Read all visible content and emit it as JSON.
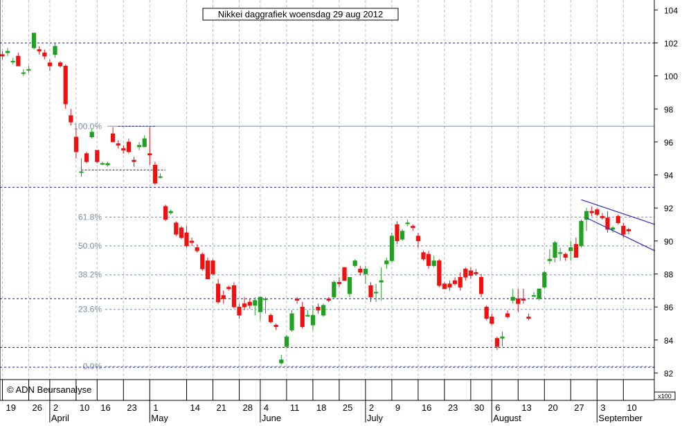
{
  "chart_data": {
    "type": "candlestick",
    "title": "Nikkei daggrafiek woensdag 29 aug 2012",
    "watermark": "© ADN Beursanalyse",
    "y_unit_label": "x100",
    "ylim": [
      81.6,
      104.6
    ],
    "y_ticks": [
      82,
      84,
      86,
      88,
      90,
      92,
      94,
      96,
      98,
      100,
      102,
      104
    ],
    "x_ticks": [
      {
        "label": "19",
        "i": 0
      },
      {
        "label": "26",
        "i": 5
      },
      {
        "label": "2",
        "i": 9
      },
      {
        "label": "10",
        "i": 14
      },
      {
        "label": "16",
        "i": 18
      },
      {
        "label": "23",
        "i": 23
      },
      {
        "label": "1",
        "i": 28
      },
      {
        "label": "14",
        "i": 35
      },
      {
        "label": "21",
        "i": 40
      },
      {
        "label": "28",
        "i": 45
      },
      {
        "label": "4",
        "i": 49
      },
      {
        "label": "11",
        "i": 54
      },
      {
        "label": "18",
        "i": 59
      },
      {
        "label": "25",
        "i": 64
      },
      {
        "label": "2",
        "i": 69
      },
      {
        "label": "9",
        "i": 74
      },
      {
        "label": "16",
        "i": 79
      },
      {
        "label": "23",
        "i": 84
      },
      {
        "label": "30",
        "i": 89
      },
      {
        "label": "6",
        "i": 93
      },
      {
        "label": "13",
        "i": 98
      },
      {
        "label": "20",
        "i": 103
      },
      {
        "label": "27",
        "i": 108
      },
      {
        "label": "3",
        "i": 113
      },
      {
        "label": "10",
        "i": 118
      }
    ],
    "months": [
      {
        "label": "April",
        "i": 9
      },
      {
        "label": "May",
        "i": 28
      },
      {
        "label": "June",
        "i": 49
      },
      {
        "label": "July",
        "i": 69
      },
      {
        "label": "August",
        "i": 93
      },
      {
        "label": "September",
        "i": 113
      }
    ],
    "candles": [
      [
        101.3,
        101.5,
        101.0,
        101.2
      ],
      [
        101.4,
        101.7,
        101.2,
        101.5
      ],
      [
        100.9,
        101.1,
        100.7,
        100.9
      ],
      [
        101.2,
        101.4,
        100.6,
        100.6
      ],
      [
        100.2,
        100.4,
        100.0,
        100.2
      ],
      [
        100.4,
        100.6,
        100.2,
        100.4
      ],
      [
        101.7,
        102.6,
        101.6,
        102.6
      ],
      [
        101.6,
        101.8,
        101.3,
        101.5
      ],
      [
        101.4,
        101.6,
        101.0,
        101.2
      ],
      [
        100.8,
        101.0,
        100.3,
        100.6
      ],
      [
        101.3,
        102.0,
        101.1,
        101.8
      ],
      [
        100.8,
        100.9,
        100.5,
        100.6
      ],
      [
        100.6,
        100.7,
        98.0,
        98.3
      ],
      [
        97.6,
        98.0,
        97.0,
        97.2
      ],
      [
        96.3,
        96.8,
        95.0,
        95.4
      ],
      [
        94.2,
        95.0,
        93.9,
        94.2
      ],
      [
        95.3,
        95.4,
        94.7,
        94.8
      ],
      [
        96.3,
        96.8,
        96.2,
        96.6
      ],
      [
        95.5,
        95.5,
        94.7,
        94.8
      ],
      [
        94.7,
        94.8,
        94.6,
        94.7
      ],
      [
        94.6,
        94.8,
        94.5,
        94.7
      ],
      [
        96.5,
        96.9,
        96.1,
        96.0
      ],
      [
        95.9,
        96.1,
        95.6,
        95.8
      ],
      [
        95.6,
        95.8,
        95.3,
        95.5
      ],
      [
        96.0,
        96.2,
        95.3,
        95.4
      ],
      [
        94.9,
        95.1,
        94.5,
        94.8
      ],
      [
        95.7,
        96.0,
        95.5,
        95.8
      ],
      [
        95.7,
        96.4,
        95.7,
        96.2
      ],
      [
        95.3,
        96.9,
        94.6,
        95.2
      ],
      [
        94.6,
        94.8,
        93.4,
        93.5
      ],
      [
        93.9,
        94.1,
        93.8,
        93.9
      ],
      [
        92.1,
        92.2,
        91.2,
        91.3
      ],
      [
        91.7,
        91.9,
        91.6,
        91.8
      ],
      [
        91.1,
        91.2,
        90.3,
        90.4
      ],
      [
        90.8,
        90.9,
        90.1,
        90.2
      ],
      [
        90.5,
        90.9,
        89.6,
        89.7
      ],
      [
        90.0,
        90.2,
        89.7,
        89.9
      ],
      [
        89.6,
        89.8,
        89.3,
        89.4
      ],
      [
        89.2,
        89.3,
        88.2,
        88.3
      ],
      [
        88.8,
        89.0,
        87.7,
        87.7
      ],
      [
        88.8,
        88.9,
        87.9,
        88.0
      ],
      [
        87.4,
        87.7,
        86.2,
        86.3
      ],
      [
        86.7,
        87.0,
        86.2,
        86.5
      ],
      [
        87.2,
        87.3,
        87.0,
        87.1
      ],
      [
        87.3,
        87.5,
        85.9,
        86.0
      ],
      [
        86.0,
        86.2,
        85.3,
        85.5
      ],
      [
        86.2,
        86.6,
        85.8,
        86.0
      ],
      [
        86.3,
        86.5,
        85.9,
        86.1
      ],
      [
        86.1,
        86.6,
        85.5,
        86.4
      ],
      [
        85.7,
        86.6,
        85.2,
        86.6
      ],
      [
        86.5,
        86.6,
        85.6,
        86.5
      ],
      [
        85.5,
        85.6,
        85.0,
        85.1
      ],
      [
        84.9,
        85.0,
        84.6,
        84.8
      ],
      [
        82.6,
        83.1,
        82.5,
        82.8
      ],
      [
        83.6,
        84.3,
        83.5,
        84.2
      ],
      [
        84.6,
        85.8,
        84.5,
        85.6
      ],
      [
        86.5,
        86.6,
        86.2,
        86.4
      ],
      [
        86.0,
        86.3,
        84.7,
        84.8
      ],
      [
        85.5,
        85.8,
        85.4,
        85.5
      ],
      [
        84.9,
        86.1,
        84.6,
        85.5
      ],
      [
        86.0,
        86.2,
        85.6,
        85.8
      ],
      [
        85.5,
        86.2,
        85.4,
        86.1
      ],
      [
        86.5,
        86.6,
        86.3,
        86.4
      ],
      [
        86.6,
        87.6,
        86.5,
        87.5
      ],
      [
        87.5,
        87.8,
        87.2,
        87.4
      ],
      [
        88.4,
        88.4,
        87.6,
        87.6
      ],
      [
        86.8,
        87.8,
        86.6,
        87.8
      ],
      [
        88.5,
        88.9,
        88.4,
        88.8
      ],
      [
        88.3,
        88.5,
        87.9,
        88.1
      ],
      [
        88.0,
        88.5,
        87.4,
        88.3
      ],
      [
        87.3,
        87.5,
        86.3,
        86.6
      ],
      [
        86.9,
        87.4,
        86.3,
        86.9
      ],
      [
        87.5,
        88.4,
        86.4,
        87.6
      ],
      [
        88.6,
        89.0,
        88.3,
        88.8
      ],
      [
        88.8,
        90.5,
        88.7,
        90.3
      ],
      [
        91.0,
        91.2,
        89.8,
        90.0
      ],
      [
        90.1,
        90.7,
        90.0,
        90.6
      ],
      [
        91.1,
        91.3,
        90.9,
        91.1
      ],
      [
        90.9,
        91.0,
        90.6,
        90.8
      ],
      [
        90.3,
        90.5,
        89.6,
        90.0
      ],
      [
        89.3,
        89.4,
        88.8,
        88.9
      ],
      [
        89.2,
        89.4,
        88.3,
        88.5
      ],
      [
        88.5,
        89.1,
        88.4,
        88.8
      ],
      [
        88.8,
        88.9,
        87.2,
        87.3
      ],
      [
        87.4,
        87.5,
        87.1,
        87.1
      ],
      [
        87.4,
        87.6,
        87.0,
        87.2
      ],
      [
        87.6,
        87.8,
        87.3,
        87.4
      ],
      [
        87.8,
        88.1,
        87.0,
        87.2
      ],
      [
        88.3,
        88.4,
        87.6,
        87.8
      ],
      [
        88.2,
        88.4,
        87.7,
        87.9
      ],
      [
        88.1,
        88.3,
        87.9,
        88.0
      ],
      [
        87.8,
        88.0,
        86.6,
        86.8
      ],
      [
        86.0,
        86.1,
        85.2,
        85.3
      ],
      [
        85.4,
        85.6,
        84.9,
        85.0
      ],
      [
        84.1,
        84.2,
        83.4,
        83.6
      ],
      [
        84.1,
        84.5,
        83.6,
        84.2
      ],
      [
        85.6,
        85.8,
        85.3,
        85.4
      ],
      [
        86.4,
        87.1,
        86.2,
        86.6
      ],
      [
        86.5,
        87.1,
        85.7,
        86.2
      ],
      [
        86.5,
        87.1,
        86.2,
        86.4
      ],
      [
        85.4,
        85.6,
        85.2,
        85.3
      ],
      [
        86.7,
        86.9,
        86.6,
        86.7
      ],
      [
        86.5,
        87.1,
        86.4,
        87.1
      ],
      [
        87.2,
        88.2,
        87.1,
        88.1
      ],
      [
        88.8,
        89.5,
        88.6,
        88.9
      ],
      [
        89.0,
        90.0,
        88.7,
        89.9
      ],
      [
        89.3,
        89.6,
        88.8,
        89.3
      ],
      [
        89.2,
        89.3,
        88.8,
        89.0
      ],
      [
        89.4,
        90.0,
        88.8,
        89.6
      ],
      [
        89.8,
        90.2,
        89.0,
        89.0
      ],
      [
        89.7,
        91.3,
        89.6,
        91.2
      ],
      [
        91.3,
        92.0,
        90.6,
        91.8
      ],
      [
        91.8,
        92.1,
        91.5,
        91.7
      ],
      [
        91.9,
        92.0,
        91.5,
        91.6
      ],
      [
        91.5,
        91.7,
        91.3,
        91.4
      ],
      [
        91.4,
        91.8,
        90.5,
        90.7
      ],
      [
        90.7,
        90.9,
        90.5,
        90.8
      ],
      [
        91.5,
        91.6,
        91.0,
        91.1
      ],
      [
        90.9,
        91.1,
        90.2,
        90.4
      ],
      [
        90.7,
        90.8,
        90.4,
        90.6
      ]
    ],
    "fib_levels": [
      {
        "label": "100.0%",
        "value": 96.95
      },
      {
        "label": "61.8%",
        "value": 91.45
      },
      {
        "label": "50.0%",
        "value": 89.7
      },
      {
        "label": "38.2%",
        "value": 87.95
      },
      {
        "label": "23.6%",
        "value": 85.85
      },
      {
        "label": "0.0%",
        "value": 82.4
      }
    ],
    "support_resistance": [
      102.0,
      93.25,
      86.5,
      83.55,
      82.35
    ],
    "short_levels": [
      {
        "value": 96.95,
        "from": 22,
        "to": 29
      },
      {
        "value": 94.3,
        "from": 15,
        "to": 31
      }
    ],
    "trend_lines": [
      {
        "from": [
          110,
          92.5
        ],
        "to": [
          124,
          91.0
        ]
      },
      {
        "from": [
          111,
          91.4
        ],
        "to": [
          124,
          89.4
        ]
      }
    ],
    "colors": {
      "up": "#21a121",
      "down": "#f01010",
      "fib": "#7a8da6",
      "dashed": "#1e1ea8",
      "trend": "#2a2acc",
      "grid": "#c0c0c0"
    }
  }
}
